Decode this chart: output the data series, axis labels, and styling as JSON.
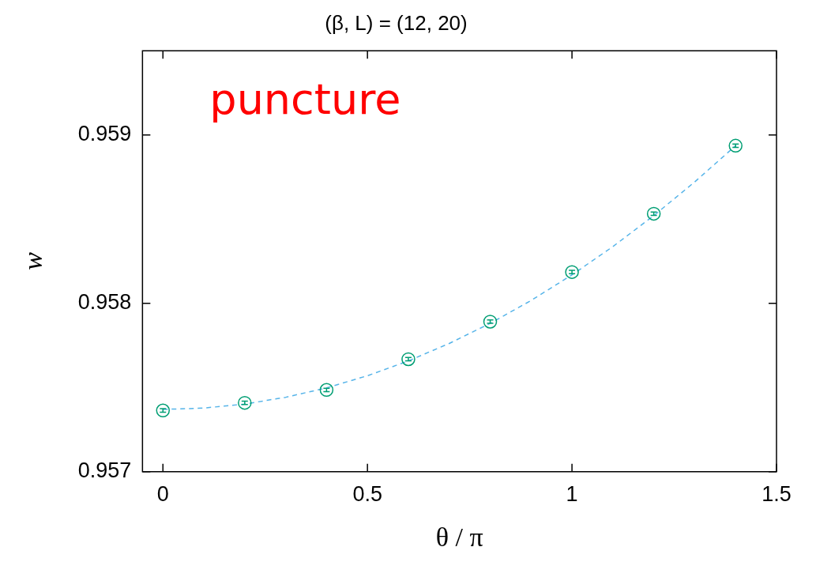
{
  "chart_data": {
    "type": "scatter",
    "title": "(β, L) = (12, 20)",
    "xlabel": "θ / π",
    "ylabel": "w",
    "annotations": [
      "puncture"
    ],
    "xlim": [
      -0.05,
      1.5
    ],
    "xticks": [
      0,
      0.5,
      1,
      1.5
    ],
    "ylim": [
      0.957,
      0.9595
    ],
    "yticks": [
      0.957,
      0.958,
      0.959
    ],
    "grid": false,
    "legend": false,
    "series": [
      {
        "type": "scatter",
        "color": "#009e73",
        "marker": "circle",
        "x": [
          0,
          0.2,
          0.4,
          0.6,
          0.8,
          1.0,
          1.2,
          1.4
        ],
        "values": [
          0.957364,
          0.957409,
          0.957486,
          0.957668,
          0.957891,
          0.958186,
          0.958532,
          0.958936
        ],
        "errors": [
          1e-05,
          1e-05,
          1e-05,
          1e-05,
          1e-05,
          1e-05,
          1e-05,
          1e-05
        ]
      },
      {
        "type": "line",
        "color": "#56b4e9",
        "marker": "none",
        "line_style": "dashed",
        "x": [
          0,
          0.1,
          0.2,
          0.3,
          0.4,
          0.5,
          0.6,
          0.7,
          0.8,
          0.9,
          1.0,
          1.1,
          1.2,
          1.3,
          1.4
        ],
        "values": [
          0.95737,
          0.957378,
          0.957402,
          0.957442,
          0.957498,
          0.95757,
          0.957658,
          0.957762,
          0.957881,
          0.958017,
          0.958169,
          0.958337,
          0.958521,
          0.958721,
          0.958936
        ]
      }
    ]
  }
}
